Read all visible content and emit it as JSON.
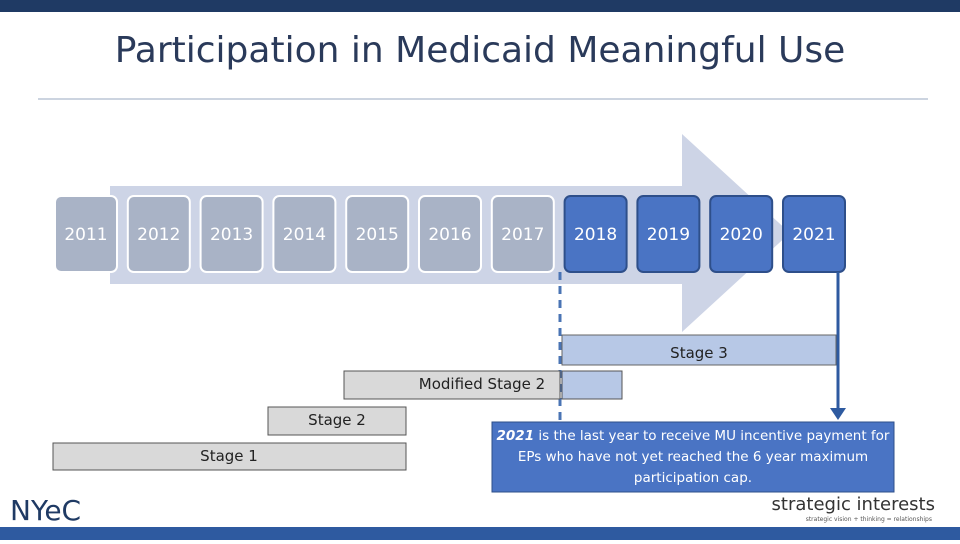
{
  "header": {
    "title": "Participation in Medicaid Meaningful Use"
  },
  "years": [
    "2011",
    "2012",
    "2013",
    "2014",
    "2015",
    "2016",
    "2017",
    "2018",
    "2019",
    "2020",
    "2021"
  ],
  "stages": [
    "Stage 3",
    "Modified Stage 2",
    "Stage 2",
    "Stage 1"
  ],
  "callout": {
    "emphasis": "2021",
    "text": "is the last year to receive MU incentive payment for EPs who have not yet reached the 6 year maximum participation cap."
  },
  "logos": {
    "left": "NYeC",
    "right": "strategic interests",
    "right_tagline": "strategic vision + thinking = relationships"
  }
}
